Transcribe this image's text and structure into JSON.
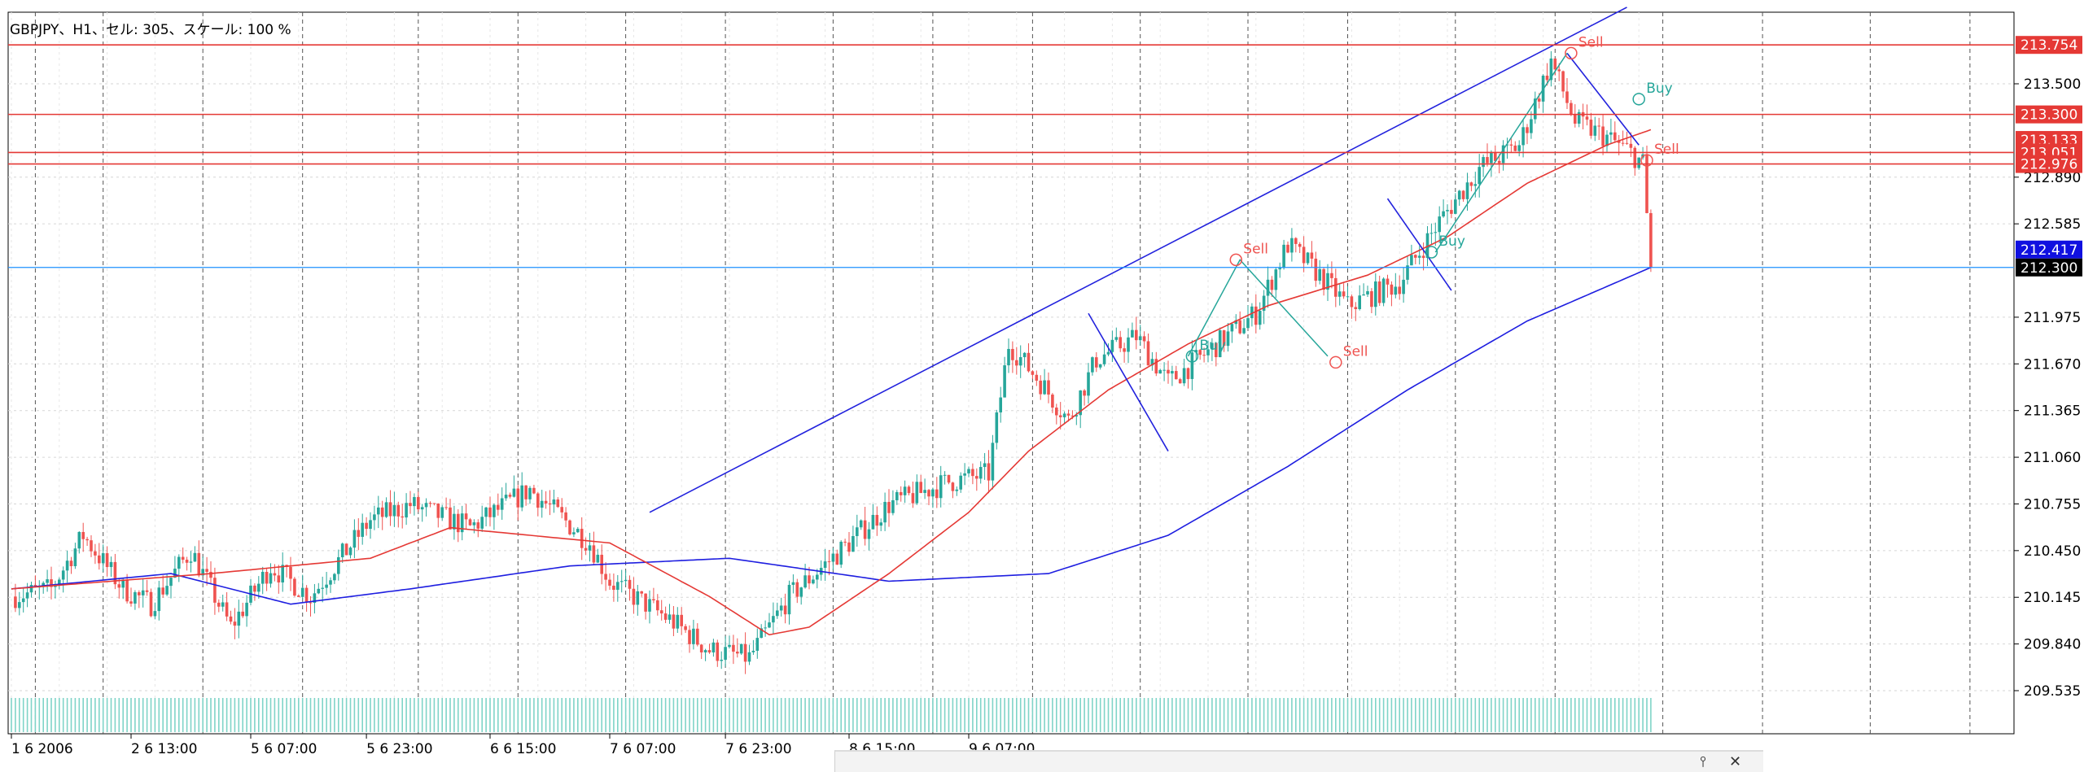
{
  "window": {
    "symbol_label": "GBPJPY、H1、セル: 305、スケール: 100 %",
    "panel_pin_icon": "pin-icon",
    "panel_close_icon": "close-icon"
  },
  "colors": {
    "candle_up": "#26a69a",
    "candle_down": "#ef5350",
    "ma_fast": "#e53935",
    "ma_slow": "#1e1ee0",
    "trend_line": "#2222dd",
    "zigzag": "#26a69a",
    "level_line": "#e53935",
    "bid_line": "#1e90ff",
    "volume": "#7fd4c8",
    "grid": "#d6d6d6"
  },
  "chart_data": {
    "type": "candlestick",
    "symbol": "GBPJPY",
    "timeframe": "H1",
    "grid": true,
    "x": {
      "tick_labels": [
        "1 6 2006",
        "2 6 13:00",
        "5 6 07:00",
        "5 6 23:00",
        "6 6 15:00",
        "7 6 07:00",
        "7 6 23:00",
        "8 6 15:00",
        "9 6 07:00"
      ],
      "tick_bars": [
        0,
        30,
        60,
        89,
        120,
        150,
        179,
        210,
        240
      ],
      "session_separator_bars": [
        6,
        23,
        48,
        73,
        102,
        127,
        154,
        179,
        206,
        231,
        256,
        283,
        310,
        335,
        362,
        387,
        414,
        439,
        466,
        491
      ]
    },
    "y": {
      "ticks": [
        209.535,
        209.84,
        210.145,
        210.45,
        210.755,
        211.06,
        211.365,
        211.67,
        211.975,
        212.585,
        212.89,
        213.5
      ],
      "ylim": [
        209.3,
        213.95
      ]
    },
    "bar_count": 305,
    "price_path_keypoints": [
      [
        0,
        210.15
      ],
      [
        10,
        210.2
      ],
      [
        18,
        210.55
      ],
      [
        28,
        210.2
      ],
      [
        35,
        210.1
      ],
      [
        45,
        210.45
      ],
      [
        55,
        209.95
      ],
      [
        65,
        210.35
      ],
      [
        75,
        210.15
      ],
      [
        90,
        210.65
      ],
      [
        100,
        210.75
      ],
      [
        115,
        210.6
      ],
      [
        130,
        210.85
      ],
      [
        145,
        210.5
      ],
      [
        150,
        210.25
      ],
      [
        165,
        210.0
      ],
      [
        175,
        209.8
      ],
      [
        185,
        209.75
      ],
      [
        195,
        210.15
      ],
      [
        210,
        210.5
      ],
      [
        220,
        210.75
      ],
      [
        235,
        210.9
      ],
      [
        245,
        210.95
      ],
      [
        250,
        211.8
      ],
      [
        258,
        211.55
      ],
      [
        265,
        211.3
      ],
      [
        272,
        211.7
      ],
      [
        282,
        211.85
      ],
      [
        290,
        211.55
      ],
      [
        300,
        211.75
      ],
      [
        312,
        212.0
      ],
      [
        320,
        212.45
      ],
      [
        328,
        212.25
      ],
      [
        335,
        212.05
      ],
      [
        348,
        212.2
      ],
      [
        358,
        212.6
      ],
      [
        368,
        212.95
      ],
      [
        378,
        213.1
      ],
      [
        386,
        213.65
      ],
      [
        392,
        213.25
      ],
      [
        400,
        213.15
      ],
      [
        406,
        213.05
      ],
      [
        409,
        212.98
      ],
      [
        411,
        212.3
      ]
    ],
    "ma_fast_keypoints": [
      [
        0,
        210.2
      ],
      [
        50,
        210.3
      ],
      [
        90,
        210.4
      ],
      [
        110,
        210.6
      ],
      [
        150,
        210.5
      ],
      [
        175,
        210.15
      ],
      [
        190,
        209.9
      ],
      [
        200,
        209.95
      ],
      [
        220,
        210.3
      ],
      [
        240,
        210.7
      ],
      [
        255,
        211.1
      ],
      [
        275,
        211.5
      ],
      [
        295,
        211.8
      ],
      [
        315,
        212.05
      ],
      [
        340,
        212.25
      ],
      [
        360,
        212.5
      ],
      [
        380,
        212.85
      ],
      [
        400,
        213.1
      ],
      [
        411,
        213.2
      ]
    ],
    "ma_slow_keypoints": [
      [
        0,
        210.2
      ],
      [
        40,
        210.3
      ],
      [
        70,
        210.1
      ],
      [
        100,
        210.2
      ],
      [
        140,
        210.35
      ],
      [
        180,
        210.4
      ],
      [
        220,
        210.25
      ],
      [
        260,
        210.3
      ],
      [
        290,
        210.55
      ],
      [
        320,
        211.0
      ],
      [
        350,
        211.5
      ],
      [
        380,
        211.95
      ],
      [
        411,
        212.3
      ]
    ],
    "volume_count": 305,
    "levels": [
      {
        "price": 213.754,
        "label": "213.754"
      },
      {
        "price": 213.3,
        "label": "213.300"
      },
      {
        "price": 213.051,
        "label": "213.051"
      },
      {
        "price": 212.976,
        "label": "212.976"
      }
    ],
    "hidden_price_labels": [
      "213.133"
    ],
    "right_labels": [
      {
        "price": 212.417,
        "label": "212.417",
        "style": "blue"
      },
      {
        "price": 212.3,
        "label": "212.300",
        "style": "black"
      }
    ],
    "bid_price": 212.3,
    "trend_lines": [
      {
        "from": [
          160,
          210.7
        ],
        "to": [
          405,
          214.0
        ]
      },
      {
        "from": [
          270,
          212.0
        ],
        "to": [
          290,
          211.1
        ]
      },
      {
        "from": [
          345,
          212.75
        ],
        "to": [
          361,
          212.15
        ]
      },
      {
        "from": [
          390,
          213.7
        ],
        "to": [
          408,
          213.1
        ]
      }
    ],
    "zigzag": [
      [
        295,
        211.72
      ],
      [
        308,
        212.35
      ],
      [
        330,
        211.72
      ]
    ],
    "zigzag2": [
      [
        357,
        212.4
      ],
      [
        390,
        213.7
      ]
    ],
    "signals": [
      {
        "bar": 307,
        "price": 212.35,
        "label": "Sell",
        "kind": "sell"
      },
      {
        "bar": 296,
        "price": 211.72,
        "label": "Buy",
        "kind": "buy"
      },
      {
        "bar": 332,
        "price": 211.68,
        "label": "Sell",
        "kind": "sell"
      },
      {
        "bar": 356,
        "price": 212.4,
        "label": "Buy",
        "kind": "buy"
      },
      {
        "bar": 391,
        "price": 213.7,
        "label": "Sell",
        "kind": "sell"
      },
      {
        "bar": 408,
        "price": 213.4,
        "label": "Buy",
        "kind": "buy"
      },
      {
        "bar": 410,
        "price": 213.0,
        "label": "Sell",
        "kind": "sell"
      }
    ]
  }
}
